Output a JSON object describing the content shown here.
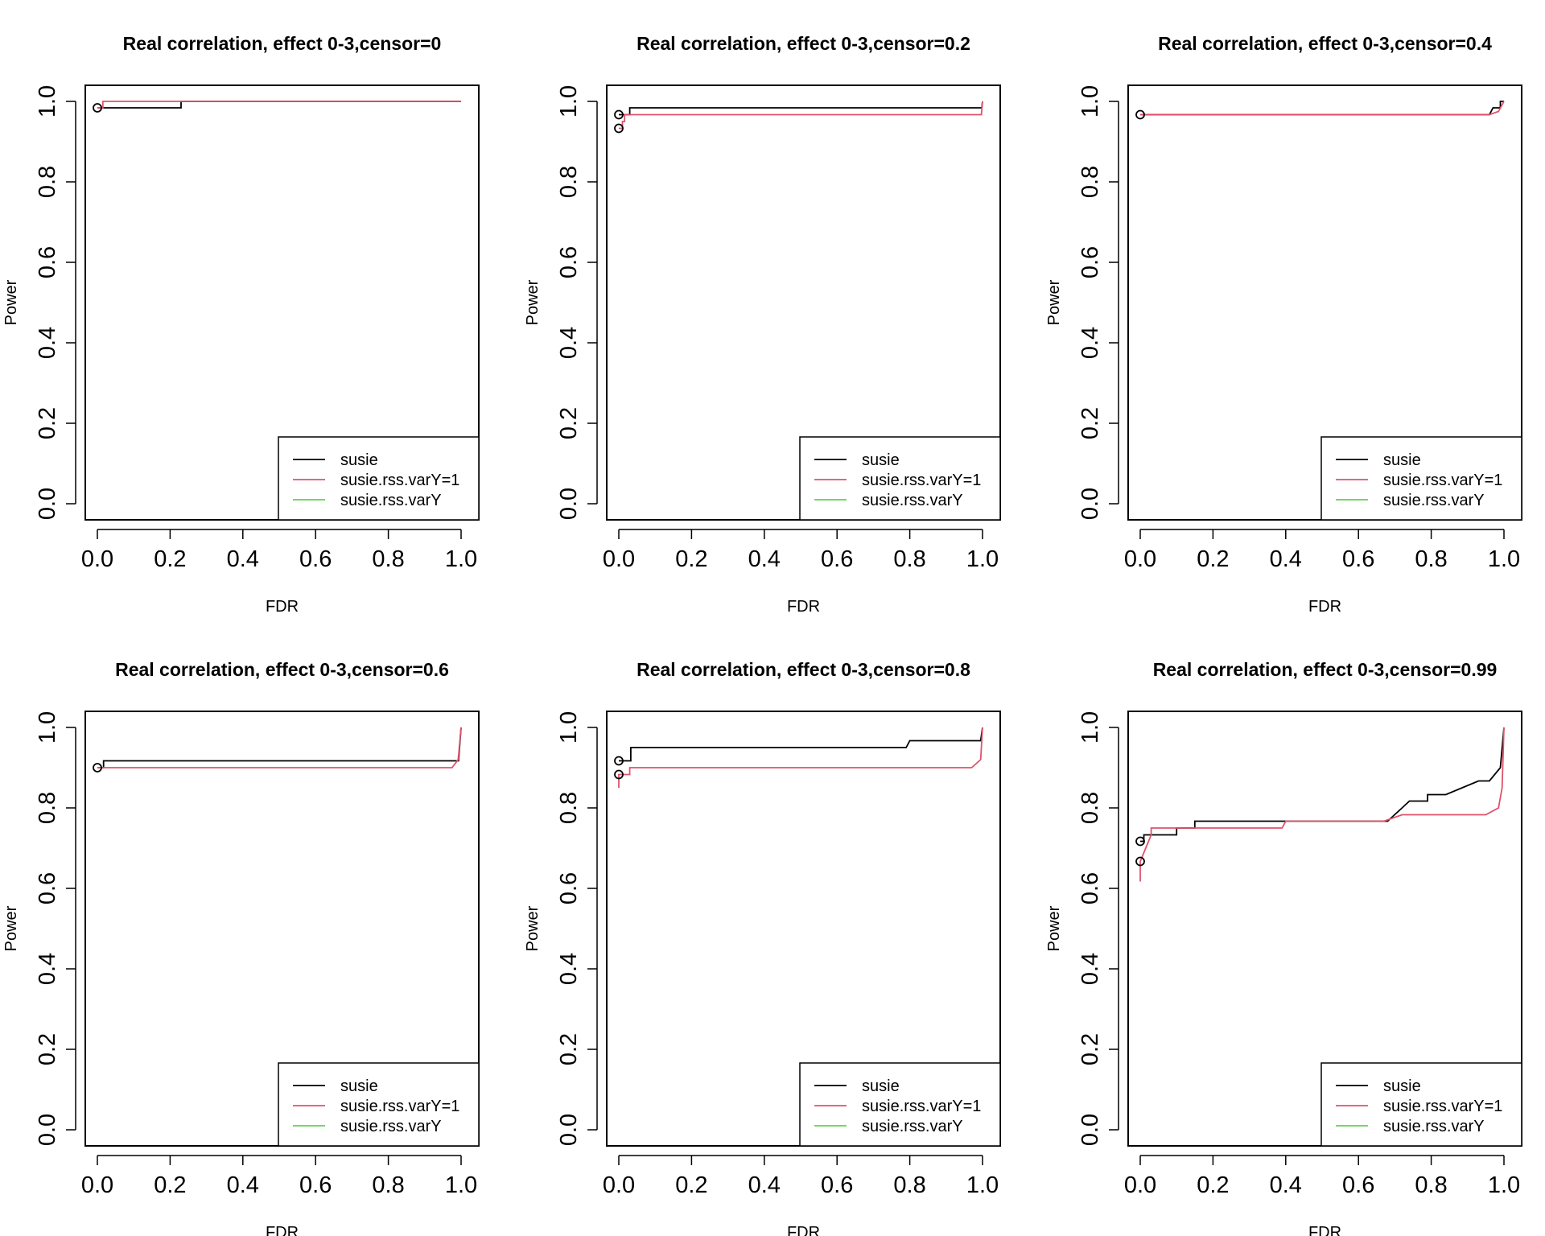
{
  "chart_data": [
    {
      "type": "line",
      "title": "Real correlation, effect 0-3,censor=0",
      "xlabel": "FDR",
      "ylabel": "Power",
      "xlim": [
        0,
        1
      ],
      "ylim": [
        0,
        1
      ],
      "x_ticks": [
        "0.0",
        "0.2",
        "0.4",
        "0.6",
        "0.8",
        "1.0"
      ],
      "y_ticks": [
        "0.0",
        "0.2",
        "0.4",
        "0.6",
        "0.8",
        "1.0"
      ],
      "grid": false,
      "legend": {
        "position": "bottom-right",
        "entries": [
          "susie",
          "susie.rss.varY=1",
          "susie.rss.varY"
        ]
      },
      "series": [
        {
          "name": "susie",
          "color": "#000000",
          "x": [
            0,
            0.23,
            0.23,
            1.0
          ],
          "y": [
            0.984,
            0.984,
            1.0,
            1.0
          ]
        },
        {
          "name": "susie.rss.varY=1",
          "color": "#DF536B",
          "x": [
            0,
            0.015,
            0.015,
            1.0
          ],
          "y": [
            0.984,
            0.984,
            1.0,
            1.0
          ]
        },
        {
          "name": "susie.rss.varY",
          "color": "#61D04F",
          "x": [],
          "y": []
        }
      ],
      "points": [
        {
          "x": 0,
          "y": 0.984
        }
      ]
    },
    {
      "type": "line",
      "title": "Real correlation, effect 0-3,censor=0.2",
      "xlabel": "FDR",
      "ylabel": "Power",
      "xlim": [
        0,
        1
      ],
      "ylim": [
        0,
        1
      ],
      "x_ticks": [
        "0.0",
        "0.2",
        "0.4",
        "0.6",
        "0.8",
        "1.0"
      ],
      "y_ticks": [
        "0.0",
        "0.2",
        "0.4",
        "0.6",
        "0.8",
        "1.0"
      ],
      "grid": false,
      "legend": {
        "position": "bottom-right",
        "entries": [
          "susie",
          "susie.rss.varY=1",
          "susie.rss.varY"
        ]
      },
      "series": [
        {
          "name": "susie",
          "color": "#000000",
          "x": [
            0,
            0.03,
            0.03,
            0.998,
            1.0
          ],
          "y": [
            0.967,
            0.967,
            0.984,
            0.984,
            1.0
          ]
        },
        {
          "name": "susie.rss.varY=1",
          "color": "#DF536B",
          "x": [
            0,
            0.01,
            0.01,
            0.016,
            0.016,
            0.997,
            1.0
          ],
          "y": [
            0.933,
            0.933,
            0.95,
            0.95,
            0.967,
            0.967,
            1.0
          ]
        },
        {
          "name": "susie.rss.varY",
          "color": "#61D04F",
          "x": [],
          "y": []
        }
      ],
      "points": [
        {
          "x": 0,
          "y": 0.967
        },
        {
          "x": 0,
          "y": 0.933
        }
      ]
    },
    {
      "type": "line",
      "title": "Real correlation, effect 0-3,censor=0.4",
      "xlabel": "FDR",
      "ylabel": "Power",
      "xlim": [
        0,
        1
      ],
      "ylim": [
        0,
        1
      ],
      "x_ticks": [
        "0.0",
        "0.2",
        "0.4",
        "0.6",
        "0.8",
        "1.0"
      ],
      "y_ticks": [
        "0.0",
        "0.2",
        "0.4",
        "0.6",
        "0.8",
        "1.0"
      ],
      "grid": false,
      "legend": {
        "position": "bottom-right",
        "entries": [
          "susie",
          "susie.rss.varY=1",
          "susie.rss.varY"
        ]
      },
      "series": [
        {
          "name": "susie",
          "color": "#000000",
          "x": [
            0,
            0.96,
            0.97,
            0.97,
            0.99,
            0.99,
            1.0
          ],
          "y": [
            0.967,
            0.967,
            0.984,
            0.984,
            0.984,
            1.0,
            1.0
          ]
        },
        {
          "name": "susie.rss.varY=1",
          "color": "#DF536B",
          "x": [
            0,
            0.96,
            0.985,
            1.0
          ],
          "y": [
            0.967,
            0.967,
            0.975,
            1.0
          ]
        },
        {
          "name": "susie.rss.varY",
          "color": "#61D04F",
          "x": [],
          "y": []
        }
      ],
      "points": [
        {
          "x": 0,
          "y": 0.967
        }
      ]
    },
    {
      "type": "line",
      "title": "Real correlation, effect 0-3,censor=0.6",
      "xlabel": "FDR",
      "ylabel": "Power",
      "xlim": [
        0,
        1
      ],
      "ylim": [
        0,
        1
      ],
      "x_ticks": [
        "0.0",
        "0.2",
        "0.4",
        "0.6",
        "0.8",
        "1.0"
      ],
      "y_ticks": [
        "0.0",
        "0.2",
        "0.4",
        "0.6",
        "0.8",
        "1.0"
      ],
      "grid": false,
      "legend": {
        "position": "bottom-right",
        "entries": [
          "susie",
          "susie.rss.varY=1",
          "susie.rss.varY"
        ]
      },
      "series": [
        {
          "name": "susie",
          "color": "#000000",
          "x": [
            0,
            0.017,
            0.017,
            0.993,
            1.0
          ],
          "y": [
            0.9,
            0.9,
            0.917,
            0.917,
            1.0
          ]
        },
        {
          "name": "susie.rss.varY=1",
          "color": "#DF536B",
          "x": [
            0,
            0.975,
            0.992,
            1.0
          ],
          "y": [
            0.9,
            0.9,
            0.92,
            1.0
          ]
        },
        {
          "name": "susie.rss.varY",
          "color": "#61D04F",
          "x": [],
          "y": []
        }
      ],
      "points": [
        {
          "x": 0,
          "y": 0.9
        }
      ]
    },
    {
      "type": "line",
      "title": "Real correlation, effect 0-3,censor=0.8",
      "xlabel": "FDR",
      "ylabel": "Power",
      "xlim": [
        0,
        1
      ],
      "ylim": [
        0,
        1
      ],
      "x_ticks": [
        "0.0",
        "0.2",
        "0.4",
        "0.6",
        "0.8",
        "1.0"
      ],
      "y_ticks": [
        "0.0",
        "0.2",
        "0.4",
        "0.6",
        "0.8",
        "1.0"
      ],
      "grid": false,
      "legend": {
        "position": "bottom-right",
        "entries": [
          "susie",
          "susie.rss.varY=1",
          "susie.rss.varY"
        ]
      },
      "series": [
        {
          "name": "susie",
          "color": "#000000",
          "x": [
            0,
            0.033,
            0.033,
            0.79,
            0.8,
            0.995,
            1.0
          ],
          "y": [
            0.917,
            0.917,
            0.95,
            0.95,
            0.967,
            0.967,
            1.0
          ]
        },
        {
          "name": "susie.rss.varY=1",
          "color": "#DF536B",
          "x": [
            0,
            0.0,
            0.01,
            0.01,
            0.03,
            0.03,
            0.97,
            0.995,
            1.0
          ],
          "y": [
            0.85,
            0.883,
            0.883,
            0.883,
            0.883,
            0.9,
            0.9,
            0.92,
            1.0
          ]
        },
        {
          "name": "susie.rss.varY",
          "color": "#61D04F",
          "x": [],
          "y": []
        }
      ],
      "points": [
        {
          "x": 0,
          "y": 0.917
        },
        {
          "x": 0,
          "y": 0.883
        }
      ]
    },
    {
      "type": "line",
      "title": "Real correlation, effect 0-3,censor=0.99",
      "xlabel": "FDR",
      "ylabel": "Power",
      "xlim": [
        0,
        1
      ],
      "ylim": [
        0,
        1
      ],
      "x_ticks": [
        "0.0",
        "0.2",
        "0.4",
        "0.6",
        "0.8",
        "1.0"
      ],
      "y_ticks": [
        "0.0",
        "0.2",
        "0.4",
        "0.6",
        "0.8",
        "1.0"
      ],
      "grid": false,
      "legend": {
        "position": "bottom-right",
        "entries": [
          "susie",
          "susie.rss.varY=1",
          "susie.rss.varY"
        ]
      },
      "series": [
        {
          "name": "susie",
          "color": "#000000",
          "x": [
            0,
            0.01,
            0.01,
            0.1,
            0.1,
            0.15,
            0.15,
            0.68,
            0.72,
            0.74,
            0.79,
            0.79,
            0.84,
            0.84,
            0.93,
            0.96,
            0.99,
            1.0
          ],
          "y": [
            0.717,
            0.717,
            0.733,
            0.733,
            0.75,
            0.75,
            0.767,
            0.767,
            0.8,
            0.817,
            0.817,
            0.833,
            0.833,
            0.833,
            0.867,
            0.867,
            0.9,
            1.0
          ]
        },
        {
          "name": "susie.rss.varY=1",
          "color": "#DF536B",
          "x": [
            0,
            0.0,
            0.015,
            0.015,
            0.03,
            0.03,
            0.39,
            0.4,
            0.67,
            0.72,
            0.95,
            0.985,
            0.995,
            1.0
          ],
          "y": [
            0.617,
            0.667,
            0.7,
            0.7,
            0.733,
            0.75,
            0.75,
            0.767,
            0.767,
            0.783,
            0.783,
            0.8,
            0.85,
            1.0
          ]
        },
        {
          "name": "susie.rss.varY",
          "color": "#61D04F",
          "x": [],
          "y": []
        }
      ],
      "points": [
        {
          "x": 0,
          "y": 0.717
        },
        {
          "x": 0,
          "y": 0.667
        }
      ]
    }
  ]
}
